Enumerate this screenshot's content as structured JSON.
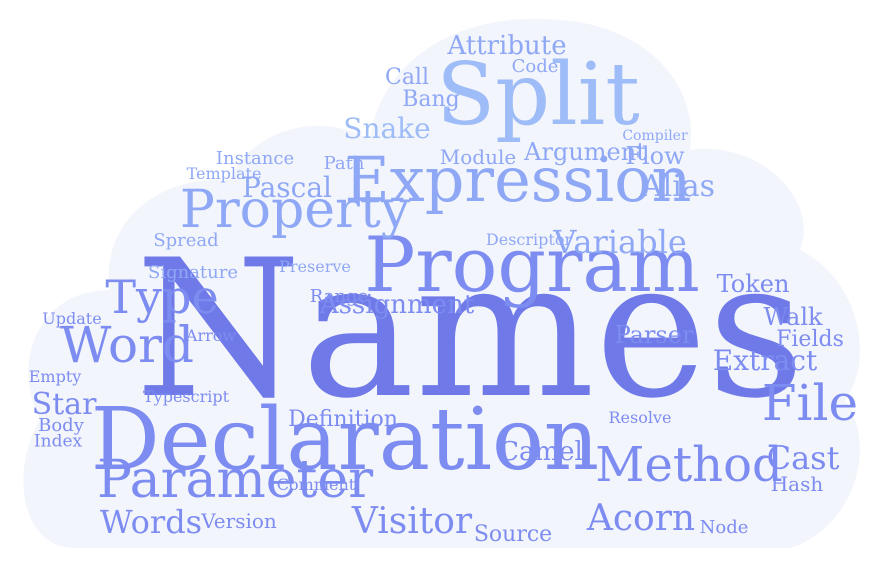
{
  "colors": {
    "background": "#ffffff",
    "cloud_fill": "#f3f5fc",
    "palette": [
      "#6f7ae8",
      "#7d8cf0",
      "#8fa8f5",
      "#9ebcf7",
      "#7a6ee4",
      "#a3c6f8"
    ]
  },
  "words": [
    {
      "text": "Names",
      "weight": 1.0
    },
    {
      "text": "Declaration",
      "weight": 0.72
    },
    {
      "text": "Program",
      "weight": 0.6
    },
    {
      "text": "Split",
      "weight": 0.55
    },
    {
      "text": "Expression",
      "weight": 0.5
    },
    {
      "text": "Property",
      "weight": 0.42
    },
    {
      "text": "Parameter",
      "weight": 0.42
    },
    {
      "text": "Method",
      "weight": 0.4
    },
    {
      "text": "Word",
      "weight": 0.38
    },
    {
      "text": "File",
      "weight": 0.38
    },
    {
      "text": "Type",
      "weight": 0.34
    },
    {
      "text": "Visitor",
      "weight": 0.3
    },
    {
      "text": "Acorn",
      "weight": 0.3
    },
    {
      "text": "Words",
      "weight": 0.3
    },
    {
      "text": "Variable",
      "weight": 0.28
    },
    {
      "text": "Cast",
      "weight": 0.28
    },
    {
      "text": "Extract",
      "weight": 0.27
    },
    {
      "text": "Alias",
      "weight": 0.27
    },
    {
      "text": "Pascal",
      "weight": 0.26
    },
    {
      "text": "Snake",
      "weight": 0.26
    },
    {
      "text": "Camel",
      "weight": 0.26
    },
    {
      "text": "Parser",
      "weight": 0.25
    },
    {
      "text": "Token",
      "weight": 0.24
    },
    {
      "text": "Fields",
      "weight": 0.24
    },
    {
      "text": "Walk",
      "weight": 0.24
    },
    {
      "text": "Star",
      "weight": 0.24
    },
    {
      "text": "Attribute",
      "weight": 0.23
    },
    {
      "text": "Assignment",
      "weight": 0.23
    },
    {
      "text": "Argument",
      "weight": 0.22
    },
    {
      "text": "Flow",
      "weight": 0.22
    },
    {
      "text": "Call",
      "weight": 0.22
    },
    {
      "text": "Bang",
      "weight": 0.22
    },
    {
      "text": "Hash",
      "weight": 0.22
    },
    {
      "text": "Source",
      "weight": 0.2
    },
    {
      "text": "Definition",
      "weight": 0.2
    },
    {
      "text": "Module",
      "weight": 0.19
    },
    {
      "text": "Version",
      "weight": 0.19
    },
    {
      "text": "Code",
      "weight": 0.18
    },
    {
      "text": "Range",
      "weight": 0.17
    },
    {
      "text": "Path",
      "weight": 0.17
    },
    {
      "text": "Node",
      "weight": 0.17
    },
    {
      "text": "Spread",
      "weight": 0.17
    },
    {
      "text": "Signature",
      "weight": 0.17
    },
    {
      "text": "Instance",
      "weight": 0.17
    },
    {
      "text": "Template",
      "weight": 0.16
    },
    {
      "text": "Body",
      "weight": 0.16
    },
    {
      "text": "Index",
      "weight": 0.16
    },
    {
      "text": "Update",
      "weight": 0.16
    },
    {
      "text": "Empty",
      "weight": 0.16
    },
    {
      "text": "Comment",
      "weight": 0.16
    },
    {
      "text": "Resolve",
      "weight": 0.16
    },
    {
      "text": "Preserve",
      "weight": 0.16
    },
    {
      "text": "Descriptor",
      "weight": 0.15
    },
    {
      "text": "Arrow",
      "weight": 0.16
    },
    {
      "text": "Typescript",
      "weight": 0.15
    },
    {
      "text": "Compiler",
      "weight": 0.14
    }
  ]
}
